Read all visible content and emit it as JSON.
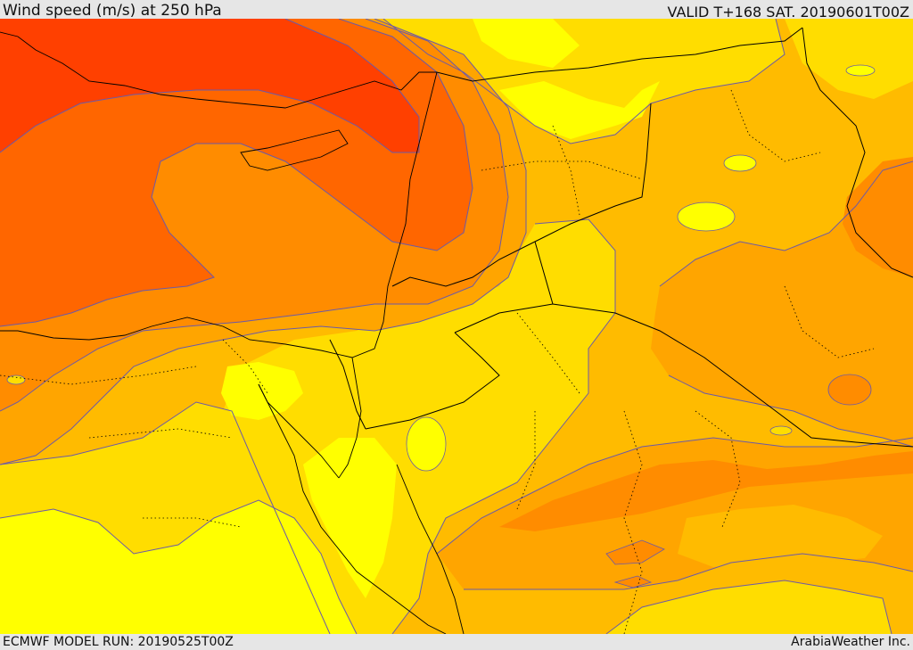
{
  "header": {
    "title": "Wind speed (m/s) at 250 hPa",
    "valid": "VALID T+168 SAT. 20190601T00Z"
  },
  "footer": {
    "model_run": "ECMWF MODEL RUN: 20190525T00Z",
    "credit": "ArabiaWeather Inc."
  },
  "palette": {
    "c1": "#ffff00",
    "c2": "#ffdd00",
    "c3": "#ffbb00",
    "c4": "#ffa500",
    "c5": "#ff8c00",
    "c6": "#ff6600",
    "c7": "#ff4000",
    "contour": "#6b5aa8",
    "border": "#000000"
  }
}
